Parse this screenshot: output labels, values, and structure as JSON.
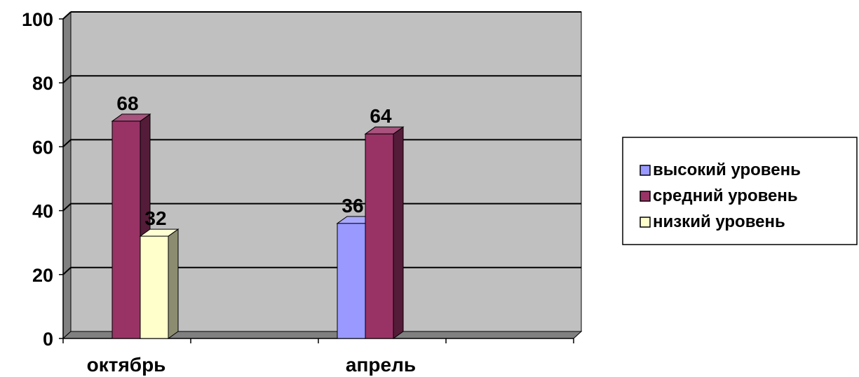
{
  "chart_data": {
    "type": "bar",
    "categories": [
      "октябрь",
      "апрель"
    ],
    "series": [
      {
        "name": "высокий уровень",
        "values": [
          null,
          36
        ]
      },
      {
        "name": "средний уровень",
        "values": [
          68,
          64
        ]
      },
      {
        "name": "низкий уровень",
        "values": [
          32,
          null
        ]
      }
    ],
    "yticks": [
      "0",
      "20",
      "40",
      "60",
      "80",
      "100"
    ],
    "ylim": [
      0,
      100
    ],
    "grid": true,
    "legend_position": "right",
    "colors": {
      "высокий уровень": "#9999ff",
      "средний уровень": "#993366",
      "низкий уровень": "#ffffcc"
    },
    "plot_background": "#c0c0c0"
  }
}
